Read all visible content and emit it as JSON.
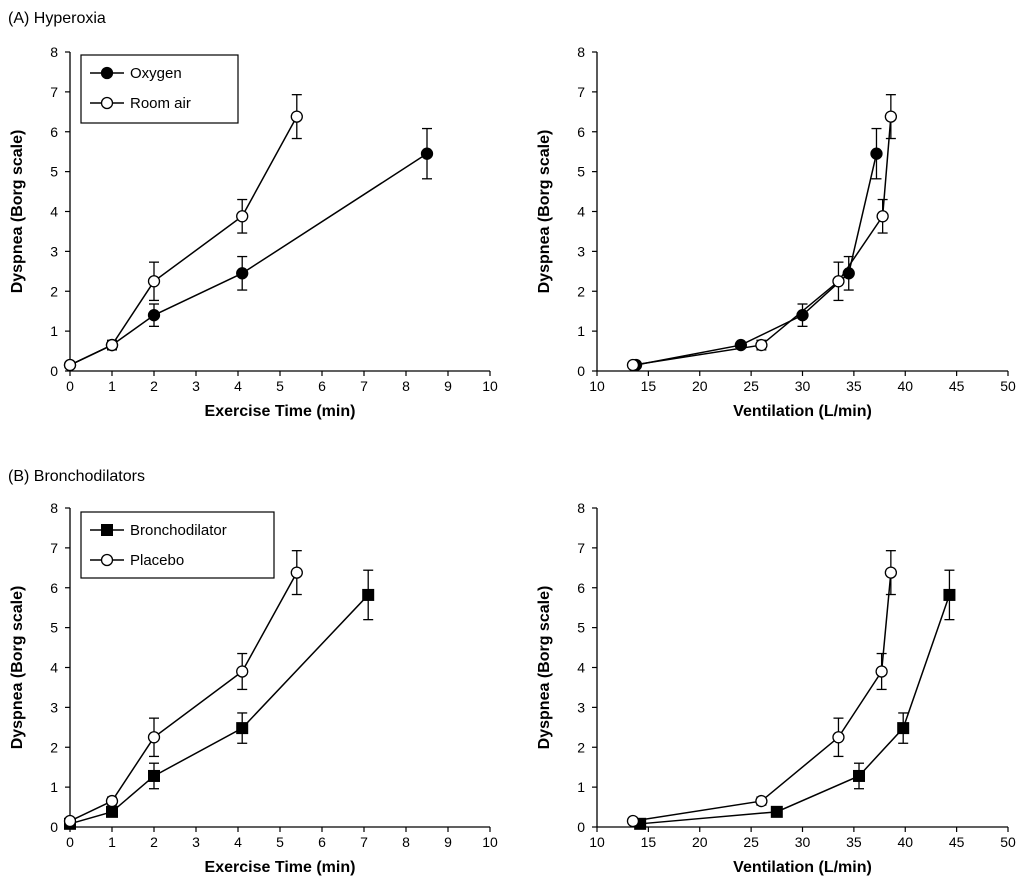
{
  "panels": {
    "a_label": "(A) Hyperoxia",
    "b_label": "(B) Bronchodilators"
  },
  "chart_data": [
    {
      "type": "scatter",
      "panel": "A",
      "xlabel": "Exercise Time (min)",
      "ylabel": "Dyspnea (Borg scale)",
      "xlim": [
        0,
        10
      ],
      "ylim": [
        0,
        8
      ],
      "xticks": [
        0,
        1,
        2,
        3,
        4,
        5,
        6,
        7,
        8,
        9,
        10
      ],
      "yticks": [
        0,
        1,
        2,
        3,
        4,
        5,
        6,
        7,
        8
      ],
      "legend": "top-left",
      "series": [
        {
          "name": "Oxygen",
          "marker": "filled-circle",
          "x": [
            0,
            1,
            2,
            4.1,
            8.5
          ],
          "y": [
            0.15,
            0.65,
            1.4,
            2.45,
            5.45
          ],
          "err": [
            0,
            0.1,
            0.28,
            0.42,
            0.63
          ]
        },
        {
          "name": "Room air",
          "marker": "open-circle",
          "x": [
            0,
            1,
            2,
            4.1,
            5.4
          ],
          "y": [
            0.15,
            0.65,
            2.25,
            3.88,
            6.38
          ],
          "err": [
            0,
            0.12,
            0.48,
            0.42,
            0.55
          ]
        }
      ]
    },
    {
      "type": "scatter",
      "panel": "A-right",
      "xlabel": "Ventilation (L/min)",
      "ylabel": "Dyspnea (Borg scale)",
      "xlim": [
        10,
        50
      ],
      "ylim": [
        0,
        8
      ],
      "xticks": [
        10,
        15,
        20,
        25,
        30,
        35,
        40,
        45,
        50
      ],
      "yticks": [
        0,
        1,
        2,
        3,
        4,
        5,
        6,
        7,
        8
      ],
      "series": [
        {
          "name": "Oxygen",
          "marker": "filled-circle",
          "x": [
            13.8,
            24,
            30,
            34.5,
            37.2
          ],
          "y": [
            0.15,
            0.65,
            1.4,
            2.45,
            5.45
          ],
          "err": [
            0,
            0.05,
            0.28,
            0.42,
            0.63
          ]
        },
        {
          "name": "Room air",
          "marker": "open-circle",
          "x": [
            13.5,
            26,
            33.5,
            37.8,
            38.6
          ],
          "y": [
            0.15,
            0.65,
            2.25,
            3.88,
            6.38
          ],
          "err": [
            0,
            0.12,
            0.48,
            0.42,
            0.55
          ]
        }
      ]
    },
    {
      "type": "scatter",
      "panel": "B",
      "xlabel": "Exercise Time (min)",
      "ylabel": "Dyspnea (Borg scale)",
      "xlim": [
        0,
        10
      ],
      "ylim": [
        0,
        8
      ],
      "xticks": [
        0,
        1,
        2,
        3,
        4,
        5,
        6,
        7,
        8,
        9,
        10
      ],
      "yticks": [
        0,
        1,
        2,
        3,
        4,
        5,
        6,
        7,
        8
      ],
      "legend": "top-left",
      "series": [
        {
          "name": "Bronchodilator",
          "marker": "filled-square",
          "x": [
            0,
            1,
            2,
            4.1,
            7.1
          ],
          "y": [
            0.08,
            0.38,
            1.28,
            2.48,
            5.82
          ],
          "err": [
            0,
            0.08,
            0.32,
            0.38,
            0.62
          ]
        },
        {
          "name": "Placebo",
          "marker": "open-circle",
          "x": [
            0,
            1,
            2,
            4.1,
            5.4
          ],
          "y": [
            0.15,
            0.65,
            2.25,
            3.9,
            6.38
          ],
          "err": [
            0,
            0.1,
            0.48,
            0.45,
            0.55
          ]
        }
      ]
    },
    {
      "type": "scatter",
      "panel": "B-right",
      "xlabel": "Ventilation (L/min)",
      "ylabel": "Dyspnea (Borg scale)",
      "xlim": [
        10,
        50
      ],
      "ylim": [
        0,
        8
      ],
      "xticks": [
        10,
        15,
        20,
        25,
        30,
        35,
        40,
        45,
        50
      ],
      "yticks": [
        0,
        1,
        2,
        3,
        4,
        5,
        6,
        7,
        8
      ],
      "series": [
        {
          "name": "Bronchodilator",
          "marker": "filled-square",
          "x": [
            14.2,
            27.5,
            35.5,
            39.8,
            44.3
          ],
          "y": [
            0.08,
            0.38,
            1.28,
            2.48,
            5.82
          ],
          "err": [
            0,
            0.05,
            0.32,
            0.38,
            0.62
          ]
        },
        {
          "name": "Placebo",
          "marker": "open-circle",
          "x": [
            13.5,
            26,
            33.5,
            37.7,
            38.6
          ],
          "y": [
            0.15,
            0.65,
            2.25,
            3.9,
            6.38
          ],
          "err": [
            0,
            0.1,
            0.48,
            0.45,
            0.55
          ]
        }
      ]
    }
  ]
}
